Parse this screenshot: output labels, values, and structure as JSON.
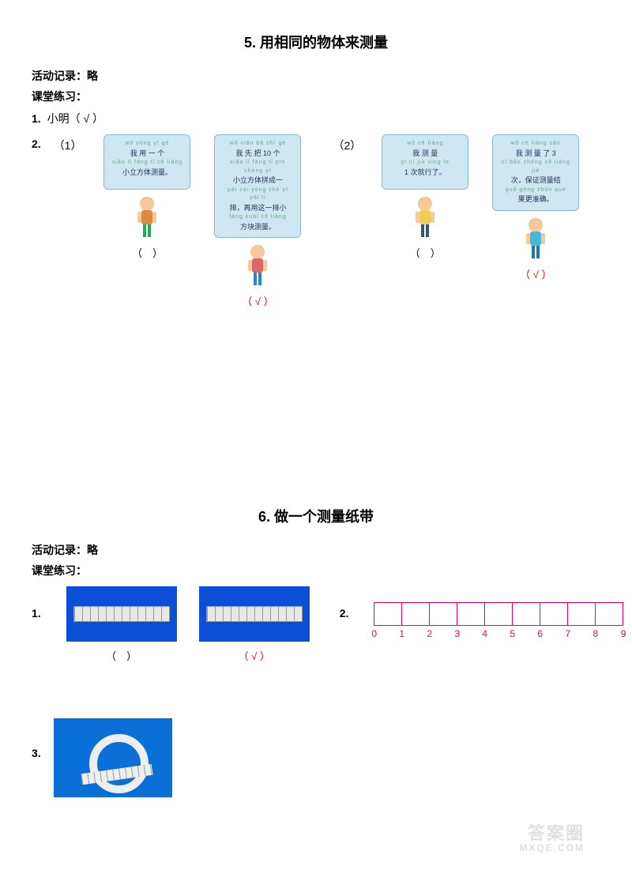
{
  "section5": {
    "title": "5. 用相同的物体来测量",
    "record_label": "活动记录：",
    "record_value": "略",
    "practice_label": "课堂练习：",
    "q1_num": "1.",
    "q1_text": "小明（ √ ）",
    "q2_num": "2.",
    "q2_sub1": "（1）",
    "q2_sub2": "（2）",
    "children": [
      {
        "pinyin": "wǒ yòng yī gè",
        "line1": "我 用 一 个",
        "pinyin2": "xiǎo lì fāng tǐ cè liáng",
        "line2": "小立方体测量。",
        "mark": "（　）",
        "colors": {
          "hair": "#222",
          "body": "#d84",
          "skin": "#f6c89a",
          "pants": "#2a5"
        }
      },
      {
        "pinyin": "wǒ xiān bǎ shí gè",
        "line1": "我 先 把 10 个",
        "pinyin2": "xiǎo lì fāng tǐ pīn chéng yī",
        "line2": "小立方体拼成一",
        "pinyin3": "pái zài yòng zhè yī pái lì",
        "line3": "排，再用这一排小",
        "pinyin4": "fāng kuài cè liáng",
        "line4": "方块测量。",
        "mark": "（ √ ）",
        "colors": {
          "hair": "#3a2",
          "body": "#d66",
          "skin": "#f6c89a",
          "pants": "#28c"
        }
      },
      {
        "pinyin": "wǒ cè liáng",
        "line1": "我 测 量",
        "pinyin2": "yī cì jiù xíng le",
        "line2": "1 次就行了。",
        "mark": "（　）",
        "colors": {
          "hair": "#a52",
          "body": "#ec5",
          "skin": "#f6c89a",
          "pants": "#357"
        }
      },
      {
        "pinyin": "wǒ cè liáng sān",
        "line1": "我 测 量 了 3",
        "pinyin2": "cì bǎo zhèng cè liáng jié",
        "line2": "次，保证测量结",
        "pinyin3": "guǒ gèng zhǔn què",
        "line3": "果更准确。",
        "mark": "（ √ ）",
        "colors": {
          "hair": "#234",
          "body": "#4bd",
          "skin": "#f6c89a",
          "pants": "#27a"
        }
      }
    ]
  },
  "section6": {
    "title": "6. 做一个测量纸带",
    "record_label": "活动记录：",
    "record_value": "略",
    "practice_label": "课堂练习：",
    "q1_num": "1.",
    "q2_num": "2.",
    "q3_num": "3.",
    "ruler_marks": [
      "（　）",
      "（ √ ）"
    ],
    "ticks": [
      "0",
      "1",
      "2",
      "3",
      "4",
      "5",
      "6",
      "7",
      "8",
      "9"
    ],
    "colors": {
      "ruler_bg": "#0a4fd6",
      "numberline": "#e06",
      "tape_bg": "#0a6fd6"
    }
  },
  "watermark": {
    "line1": "答案圈",
    "line2": "MXQE.COM"
  }
}
